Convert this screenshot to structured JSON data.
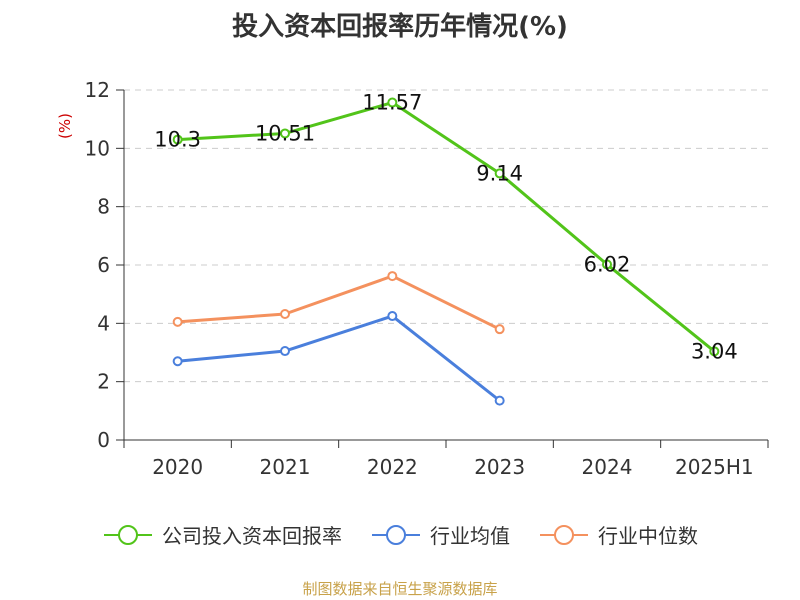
{
  "title": "投入资本回报率历年情况(%)",
  "source": "制图数据来自恒生聚源数据库",
  "chart_data": {
    "type": "line",
    "title": "投入资本回报率历年情况(%)",
    "ylabel": "(%)",
    "xlabel": "",
    "ylim": [
      0,
      12
    ],
    "yticks": [
      0,
      2,
      4,
      6,
      8,
      10,
      12
    ],
    "categories": [
      "2020",
      "2021",
      "2022",
      "2023",
      "2024",
      "2025H1"
    ],
    "grid": true,
    "legend_position": "bottom",
    "series": [
      {
        "name": "公司投入资本回报率",
        "color": "#52c41a",
        "values": [
          10.3,
          10.51,
          11.57,
          9.14,
          6.02,
          3.04
        ],
        "labels": [
          "10.3",
          "10.51",
          "11.57",
          "9.14",
          "6.02",
          "3.04"
        ],
        "show_labels": true
      },
      {
        "name": "行业均值",
        "color": "#4a7fdc",
        "values": [
          2.7,
          3.05,
          4.25,
          1.35,
          null,
          null
        ],
        "show_labels": false
      },
      {
        "name": "行业中位数",
        "color": "#f4915e",
        "values": [
          4.05,
          4.32,
          5.62,
          3.8,
          null,
          null
        ],
        "show_labels": false
      }
    ]
  }
}
